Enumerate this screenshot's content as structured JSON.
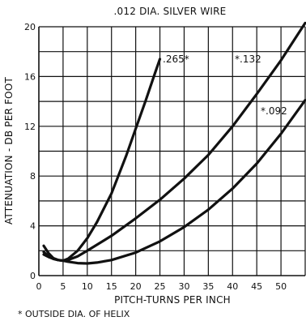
{
  "chart_data": {
    "type": "line",
    "title": ".012 DIA. SILVER WIRE",
    "xlabel": "PITCH-TURNS PER INCH",
    "ylabel": "ATTENUATION - DB PER FOOT",
    "xlim": [
      0,
      55
    ],
    "ylim": [
      0,
      20
    ],
    "x_ticks": [
      0,
      5,
      10,
      15,
      20,
      25,
      30,
      35,
      40,
      45,
      50
    ],
    "y_ticks": [
      0,
      4,
      8,
      12,
      16,
      20
    ],
    "x_tick_labels": [
      "0",
      "5",
      "10",
      "15",
      "20",
      "25",
      "30",
      "35",
      "40",
      "45",
      "50"
    ],
    "y_tick_labels": [
      "0",
      "4",
      "8",
      "12",
      "16",
      "20"
    ],
    "grid": true,
    "series": [
      {
        "name": ".265*",
        "x": [
          1,
          2,
          3,
          4,
          5,
          6,
          8,
          10,
          12,
          15,
          18,
          20,
          22,
          24,
          25
        ],
        "y": [
          2.4,
          1.8,
          1.4,
          1.25,
          1.2,
          1.35,
          2.0,
          3.0,
          4.3,
          6.6,
          9.6,
          11.8,
          14.0,
          16.3,
          17.4
        ]
      },
      {
        "name": "*.132",
        "x": [
          1,
          2,
          3,
          4,
          5,
          6,
          8,
          10,
          15,
          20,
          25,
          30,
          35,
          40,
          45,
          50,
          55
        ],
        "y": [
          1.9,
          1.55,
          1.35,
          1.25,
          1.2,
          1.25,
          1.55,
          2.0,
          3.2,
          4.6,
          6.1,
          7.8,
          9.7,
          12.0,
          14.6,
          17.3,
          20.3
        ]
      },
      {
        "name": "*.092",
        "x": [
          1,
          2,
          3,
          4,
          5,
          6,
          8,
          10,
          12,
          15,
          20,
          25,
          30,
          35,
          40,
          45,
          50,
          55
        ],
        "y": [
          1.7,
          1.5,
          1.35,
          1.25,
          1.2,
          1.12,
          1.0,
          0.98,
          1.05,
          1.25,
          1.85,
          2.75,
          3.9,
          5.3,
          7.0,
          9.0,
          11.4,
          14.1
        ]
      }
    ],
    "footnote": "OUTSIDE DIA. OF HELIX"
  }
}
